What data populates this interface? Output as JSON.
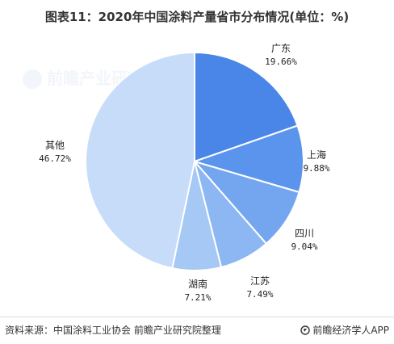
{
  "header": {
    "title": "图表11：2020年中国涂料产量省市分布情况(单位：%)"
  },
  "chart_data": {
    "type": "pie",
    "title": "图表11：2020年中国涂料产量省市分布情况(单位：%)",
    "start_angle_deg": 0,
    "direction": "clockwise",
    "slices": [
      {
        "name": "广东",
        "value": 19.66,
        "label": "19.66%",
        "color": "#4a86e8"
      },
      {
        "name": "上海",
        "value": 9.88,
        "label": "9.88%",
        "color": "#5b94ec"
      },
      {
        "name": "四川",
        "value": 9.04,
        "label": "9.04%",
        "color": "#74a6ef"
      },
      {
        "name": "江苏",
        "value": 7.49,
        "label": "7.49%",
        "color": "#8db7f2"
      },
      {
        "name": "湖南",
        "value": 7.21,
        "label": "7.21%",
        "color": "#a6c8f5"
      },
      {
        "name": "其他",
        "value": 46.72,
        "label": "46.72%",
        "color": "#c6dcf9"
      }
    ]
  },
  "footer": {
    "source": "资料来源：中国涂料工业协会 前瞻产业研究院整理",
    "brand": "前瞻经济学人APP",
    "brand_icon": "brand-icon"
  },
  "watermark": {
    "text": "前瞻产业研究"
  }
}
